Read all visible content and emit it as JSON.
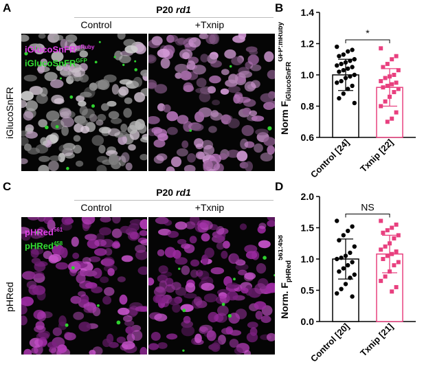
{
  "panels": {
    "A": {
      "letter": "A",
      "header": "P20",
      "header_italic": "rd1",
      "col_left": "Control",
      "col_right": "+Txnip",
      "row_label": "iGlucoSnFR",
      "legend_1_base": "iGlucoSnFR",
      "legend_1_sup": "mRuby",
      "legend_1_color": "#e040e8",
      "legend_2_base": "iGlucoSnFR",
      "legend_2_sup": "GFP",
      "legend_2_color": "#33dd33"
    },
    "C": {
      "letter": "C",
      "header": "P20",
      "header_italic": "rd1",
      "col_left": "Control",
      "col_right": "+Txnip",
      "row_label": "pHRed",
      "legend_1_base": "pHRed",
      "legend_1_sup": "561",
      "legend_1_color": "#e040e8",
      "legend_2_base": "pHRed",
      "legend_2_sup": "458",
      "legend_2_color": "#33dd33"
    },
    "B": {
      "letter": "B"
    },
    "D": {
      "letter": "D"
    }
  },
  "chart_data": [
    {
      "type": "bar",
      "panel": "B",
      "categories": [
        "Control [24]",
        "Txnip [22]"
      ],
      "ylabel_main": "Norm F",
      "ylabel_sub": "iGlucoSnFR",
      "ylabel_sup": "GFP:mRuby",
      "ylim": [
        0.6,
        1.4
      ],
      "yticks": [
        "0.6",
        "0.8",
        "1.0",
        "1.2",
        "1.4"
      ],
      "significance": "*",
      "colors": [
        "#000000",
        "#e8407f"
      ],
      "series": [
        {
          "mean": 1.0,
          "sd": 0.1,
          "points": [
            1.18,
            1.16,
            1.15,
            1.13,
            1.12,
            1.1,
            1.09,
            1.08,
            1.07,
            1.06,
            1.05,
            1.04,
            1.03,
            1.02,
            1.0,
            0.99,
            0.98,
            0.96,
            0.95,
            0.93,
            0.91,
            0.88,
            0.85,
            0.82
          ]
        },
        {
          "mean": 0.92,
          "sd": 0.12,
          "points": [
            1.17,
            1.12,
            1.1,
            1.07,
            1.05,
            1.03,
            1.0,
            0.99,
            0.98,
            0.96,
            0.95,
            0.94,
            0.93,
            0.92,
            0.91,
            0.89,
            0.86,
            0.83,
            0.8,
            0.76,
            0.72,
            0.7
          ]
        }
      ]
    },
    {
      "type": "bar",
      "panel": "D",
      "categories": [
        "Control [20]",
        "Txnip [21]"
      ],
      "ylabel_main": "Norm. F",
      "ylabel_sub": "pHRed",
      "ylabel_sup": "561:458",
      "ylim": [
        0.0,
        2.0
      ],
      "yticks": [
        "0.0",
        "0.5",
        "1.0",
        "1.5",
        "2.0"
      ],
      "significance": "NS",
      "colors": [
        "#000000",
        "#e8407f"
      ],
      "series": [
        {
          "mean": 1.0,
          "sd": 0.32,
          "points": [
            1.61,
            1.52,
            1.45,
            1.38,
            1.3,
            1.2,
            1.1,
            1.05,
            1.02,
            1.0,
            0.95,
            0.9,
            0.85,
            0.8,
            0.75,
            0.7,
            0.6,
            0.52,
            0.45,
            0.4
          ]
        },
        {
          "mean": 1.08,
          "sd": 0.3,
          "points": [
            1.61,
            1.55,
            1.5,
            1.46,
            1.42,
            1.38,
            1.33,
            1.25,
            1.2,
            1.15,
            1.12,
            1.08,
            1.05,
            1.0,
            0.95,
            0.9,
            0.8,
            0.72,
            0.65,
            0.55,
            0.48
          ]
        }
      ]
    }
  ]
}
